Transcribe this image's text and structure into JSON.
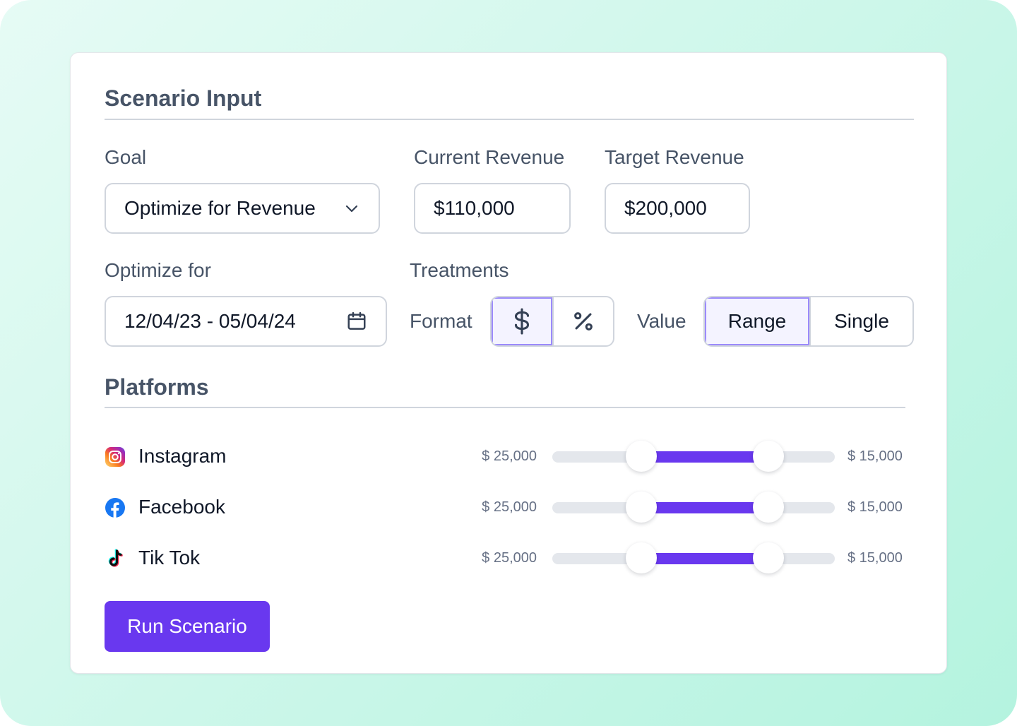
{
  "scenario": {
    "title": "Scenario Input",
    "goal": {
      "label": "Goal",
      "value": "Optimize for Revenue"
    },
    "current_revenue": {
      "label": "Current Revenue",
      "value": "$110,000"
    },
    "target_revenue": {
      "label": "Target Revenue",
      "value": "$200,000"
    },
    "optimize_for": {
      "label": "Optimize for",
      "value": "12/04/23 - 05/04/24"
    },
    "treatments": {
      "label": "Treatments",
      "format": {
        "label": "Format",
        "options": [
          "$",
          "%"
        ],
        "selected": "$"
      },
      "value": {
        "label": "Value",
        "options": [
          "Range",
          "Single"
        ],
        "selected": "Range"
      }
    }
  },
  "platforms": {
    "title": "Platforms",
    "items": [
      {
        "name": "Instagram",
        "icon": "instagram-icon",
        "min": "$ 25,000",
        "max": "$ 15,000",
        "range_start": 0.315,
        "range_end": 0.765
      },
      {
        "name": "Facebook",
        "icon": "facebook-icon",
        "min": "$ 25,000",
        "max": "$ 15,000",
        "range_start": 0.315,
        "range_end": 0.765
      },
      {
        "name": "Tik Tok",
        "icon": "tiktok-icon",
        "min": "$ 25,000",
        "max": "$ 15,000",
        "range_start": 0.315,
        "range_end": 0.765
      }
    ]
  },
  "actions": {
    "run_label": "Run Scenario"
  },
  "colors": {
    "accent": "#6938ef",
    "border": "#d0d5dd",
    "text": "#101828",
    "muted": "#475467"
  }
}
